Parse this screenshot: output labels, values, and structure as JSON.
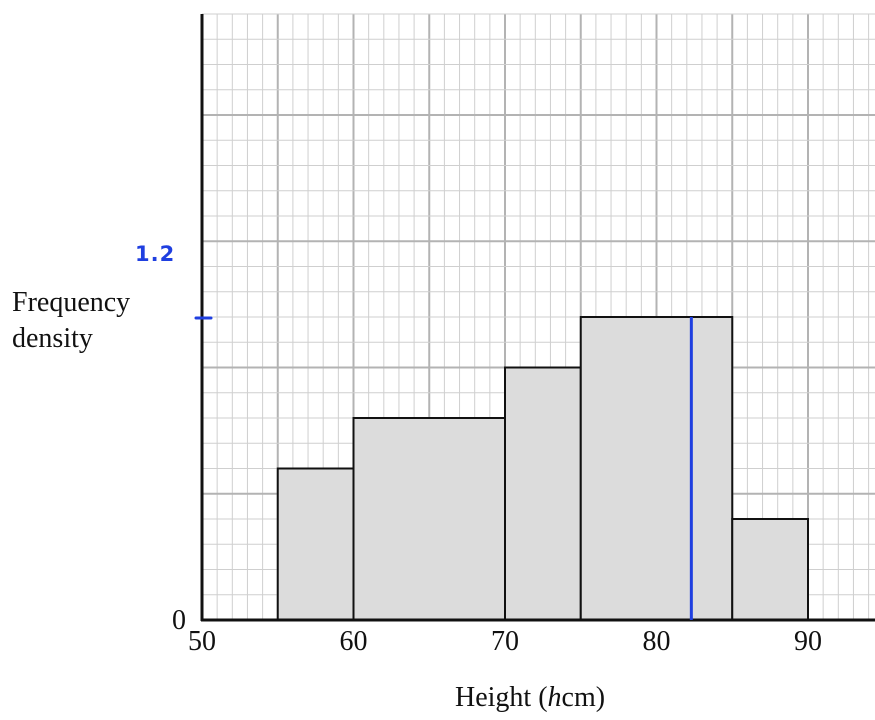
{
  "chart_data": {
    "type": "bar",
    "ylabel_line1": "Frequency",
    "ylabel_line2": "density",
    "xlabel_main": "Height (",
    "xlabel_var": "h",
    "xlabel_unit": "cm)",
    "x_ticks": [
      50,
      60,
      70,
      80,
      90
    ],
    "y_ticks": [
      0
    ],
    "xlim": [
      50,
      94.5
    ],
    "ylim": [
      0,
      2.4
    ],
    "grid": true,
    "bars": [
      {
        "from": 55,
        "to": 60,
        "value": 0.6
      },
      {
        "from": 60,
        "to": 70,
        "value": 0.8
      },
      {
        "from": 70,
        "to": 75,
        "value": 1.0
      },
      {
        "from": 75,
        "to": 85,
        "value": 1.2
      },
      {
        "from": 85,
        "to": 90,
        "value": 0.4
      }
    ],
    "bar_fill": "#dcdcdc",
    "bar_stroke": "#111111",
    "handwritten": {
      "y_mark_label": "1.2",
      "y_mark_value": 1.2,
      "vertical_line_x": 82.3,
      "color": "#1f3fe0"
    }
  }
}
